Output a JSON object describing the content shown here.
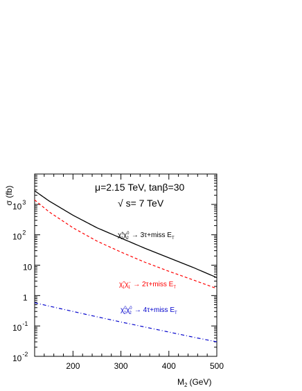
{
  "chart_data": {
    "type": "line",
    "title": "",
    "xlabel": "M",
    "xlabel_sub": "2",
    "xlabel_unit": "(GeV)",
    "ylabel": "σ (fb)",
    "xlim": [
      120,
      500
    ],
    "ylim": [
      0.01,
      10000
    ],
    "yscale": "log",
    "x_ticks": [
      {
        "value": 200,
        "label": "200"
      },
      {
        "value": 300,
        "label": "300"
      },
      {
        "value": 400,
        "label": "400"
      },
      {
        "value": 500,
        "label": "500"
      }
    ],
    "y_ticks": [
      {
        "value": 0.01,
        "base": "10",
        "exp": "-2"
      },
      {
        "value": 0.1,
        "base": "10",
        "exp": "-1"
      },
      {
        "value": 1,
        "base": "1",
        "exp": ""
      },
      {
        "value": 10,
        "base": "10",
        "exp": ""
      },
      {
        "value": 100,
        "base": "10",
        "exp": "2"
      },
      {
        "value": 1000,
        "base": "10",
        "exp": "3"
      }
    ],
    "annotations": [
      {
        "text": "μ=2.15 TeV, tanβ=30"
      },
      {
        "text": "√ s= 7 TeV"
      }
    ],
    "grid": false,
    "series": [
      {
        "name": "χ±₁χ⁰₂ → 3τ+miss E_T",
        "label_main": "χ",
        "label_rest": "χ",
        "label_sup1": "±",
        "label_sub1": "1",
        "label_sup2": "0",
        "label_sub2": "2",
        "label_tail": "→ 3τ+miss E",
        "label_tail_sub": "T",
        "color": "#000000",
        "style": "solid",
        "x": [
          120,
          150,
          200,
          250,
          300,
          350,
          400,
          450,
          500
        ],
        "y": [
          2800,
          1300,
          440,
          170,
          78,
          36,
          17.5,
          8.5,
          3.9
        ]
      },
      {
        "name": "χ⁺₁χ⁻₁ → 2τ+miss E_T",
        "label_main": "χ",
        "label_rest": "χ",
        "label_sup1": "+",
        "label_sub1": "1",
        "label_sup2": "−",
        "label_sub2": "1",
        "label_tail": "→ 2τ+miss E",
        "label_tail_sub": "T",
        "color": "#ff0000",
        "style": "dashed",
        "x": [
          120,
          150,
          200,
          250,
          300,
          350,
          400,
          450,
          500
        ],
        "y": [
          1400,
          570,
          170,
          62,
          27,
          12.5,
          6.3,
          3.3,
          1.7
        ]
      },
      {
        "name": "χ⁰₂χ⁰₂ → 4τ+miss E_T",
        "label_main": "χ",
        "label_rest": "χ",
        "label_sup1": "0",
        "label_sub1": "2",
        "label_sup2": "0",
        "label_sub2": "2",
        "label_tail": "→ 4τ+miss E",
        "label_tail_sub": "T",
        "color": "#0000cc",
        "style": "dashdot",
        "x": [
          120,
          150,
          200,
          250,
          300,
          350,
          400,
          450,
          500
        ],
        "y": [
          0.58,
          0.45,
          0.3,
          0.2,
          0.135,
          0.092,
          0.063,
          0.043,
          0.03
        ]
      }
    ]
  }
}
